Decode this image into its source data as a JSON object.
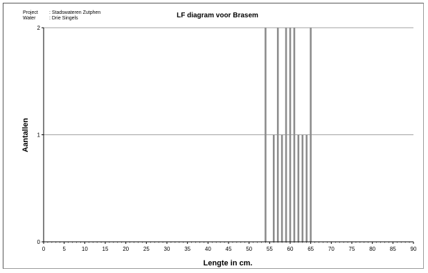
{
  "header": {
    "project_label": "Project",
    "project_value": ": Stadswateren  Zutphen",
    "water_label": "Water",
    "water_value": ": Drie Singels"
  },
  "chart_data": {
    "type": "bar",
    "title": "LF diagram voor Brasem",
    "xlabel": "Lengte in cm.",
    "ylabel": "Aantallen",
    "xlim": [
      0,
      90
    ],
    "ylim": [
      0,
      2
    ],
    "x_ticks": [
      0,
      5,
      10,
      15,
      20,
      25,
      30,
      35,
      40,
      45,
      50,
      55,
      60,
      65,
      70,
      75,
      80,
      85,
      90
    ],
    "y_ticks": [
      0,
      1,
      2
    ],
    "grid": "horizontal",
    "bar_color": "#8c8c8c",
    "x": [
      54,
      56,
      57,
      58,
      59,
      60,
      61,
      62,
      63,
      64,
      65
    ],
    "values": [
      2,
      1,
      2,
      1,
      2,
      2,
      2,
      1,
      1,
      1,
      2
    ]
  }
}
